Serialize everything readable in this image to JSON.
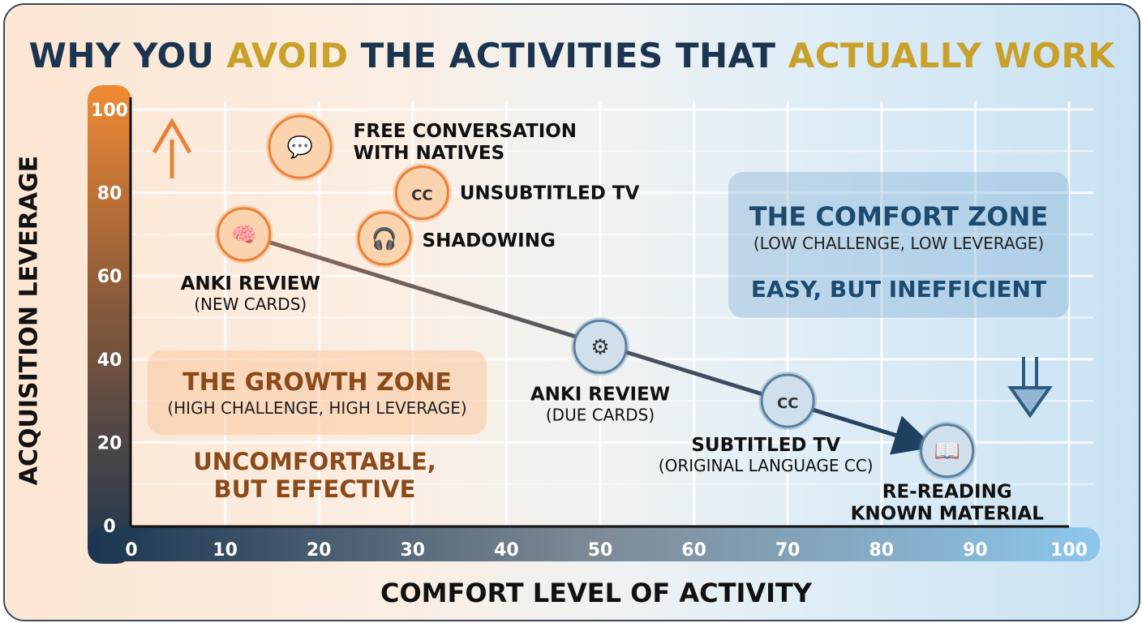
{
  "title": {
    "part1": "WHY YOU ",
    "part2": "AVOID",
    "part3": " THE ACTIVITIES THAT ",
    "part4": "ACTUALLY WORK"
  },
  "colors": {
    "title": "#1b3550",
    "highlight": "#c9a12a",
    "growth": "#e8823a",
    "comfort": "#5b8fb8",
    "trend": "#1e3f5e"
  },
  "chart_data": {
    "type": "scatter",
    "xlabel": "COMFORT LEVEL OF ACTIVITY",
    "ylabel": "ACQUISITION LEVERAGE",
    "xlim": [
      0,
      100
    ],
    "ylim": [
      0,
      100
    ],
    "xticks": [
      "0",
      "10",
      "20",
      "30",
      "40",
      "50",
      "60",
      "70",
      "80",
      "90",
      "100"
    ],
    "yticks": [
      "0",
      "20",
      "40",
      "60",
      "80",
      "100"
    ],
    "grid": true,
    "points": [
      {
        "label": "FREE CONVERSATION",
        "label2": "WITH NATIVES",
        "x": 18,
        "y": 91,
        "zone": "growth",
        "icon": "conversation-icon"
      },
      {
        "label": "UNSUBTITLED TV",
        "x": 31,
        "y": 80,
        "zone": "growth",
        "icon": "tv-no-cc-icon"
      },
      {
        "label": "SHADOWING",
        "x": 27,
        "y": 69,
        "zone": "growth",
        "icon": "headphones-mic-icon"
      },
      {
        "label": "ANKI REVIEW",
        "sub": "(NEW CARDS)",
        "x": 12,
        "y": 70,
        "zone": "growth",
        "icon": "cards-brain-icon"
      },
      {
        "label": "ANKI REVIEW",
        "sub": "(DUE CARDS)",
        "x": 50,
        "y": 43,
        "zone": "comfort",
        "icon": "cards-gear-icon"
      },
      {
        "label": "SUBTITLED TV",
        "sub": "(ORIGINAL LANGUAGE CC)",
        "x": 70,
        "y": 30,
        "zone": "comfort",
        "icon": "tv-cc-icon"
      },
      {
        "label": "RE-READING",
        "label2": "KNOWN MATERIAL",
        "x": 87,
        "y": 18,
        "zone": "comfort",
        "icon": "book-icon"
      }
    ],
    "trend_arrow": {
      "from": [
        12,
        70
      ],
      "to": [
        84,
        20
      ]
    }
  },
  "zones": {
    "growth": {
      "title": "THE GROWTH ZONE",
      "sub": "(HIGH CHALLENGE, HIGH LEVERAGE)",
      "tagline1": "UNCOMFORTABLE,",
      "tagline2": "BUT EFFECTIVE"
    },
    "comfort": {
      "title": "THE COMFORT ZONE",
      "sub": "(LOW CHALLENGE, LOW LEVERAGE)",
      "tagline": "EASY, BUT INEFFICIENT"
    }
  }
}
